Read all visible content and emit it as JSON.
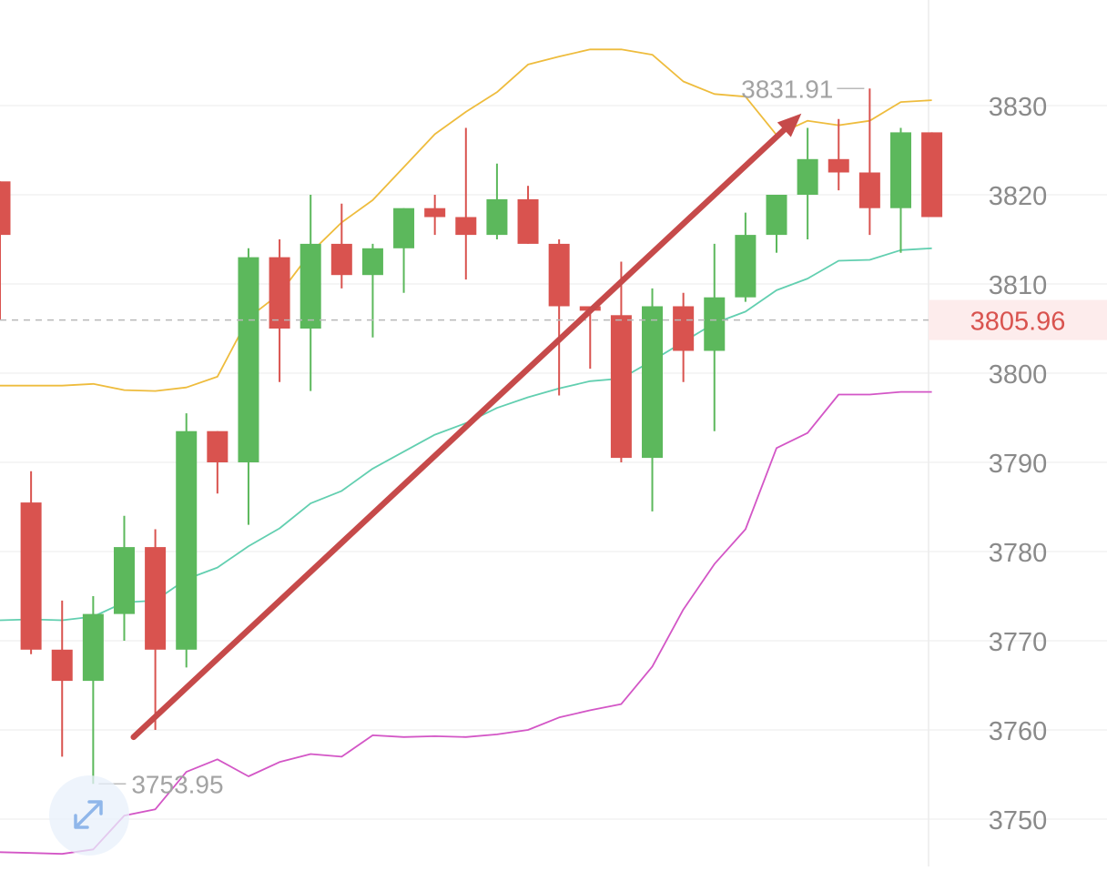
{
  "chart_data": {
    "type": "candlestick",
    "title": "",
    "xlabel": "",
    "ylabel": "",
    "ylim": [
      3746,
      3842
    ],
    "y_ticks": [
      "3750",
      "3760",
      "3770",
      "3780",
      "3790",
      "3800",
      "3810",
      "3820",
      "3830"
    ],
    "grid": true,
    "candles": [
      {
        "o": 3821.5,
        "h": 3821.5,
        "l": 3806,
        "c": 3815.5
      },
      {
        "o": 3785.5,
        "h": 3789,
        "l": 3768.5,
        "c": 3769
      },
      {
        "o": 3769,
        "h": 3774.5,
        "l": 3757,
        "c": 3765.5
      },
      {
        "o": 3765.5,
        "h": 3775,
        "l": 3753.95,
        "c": 3773
      },
      {
        "o": 3773,
        "h": 3784,
        "l": 3770,
        "c": 3780.5
      },
      {
        "o": 3780.5,
        "h": 3782.5,
        "l": 3760,
        "c": 3769
      },
      {
        "o": 3769,
        "h": 3795.5,
        "l": 3767,
        "c": 3793.5
      },
      {
        "o": 3793.5,
        "h": 3793.5,
        "l": 3786.5,
        "c": 3790
      },
      {
        "o": 3790,
        "h": 3814,
        "l": 3783,
        "c": 3813
      },
      {
        "o": 3813,
        "h": 3815,
        "l": 3799,
        "c": 3805
      },
      {
        "o": 3805,
        "h": 3820,
        "l": 3798,
        "c": 3814.5
      },
      {
        "o": 3814.5,
        "h": 3819,
        "l": 3809.5,
        "c": 3811
      },
      {
        "o": 3811,
        "h": 3814.5,
        "l": 3804,
        "c": 3814
      },
      {
        "o": 3814,
        "h": 3818.5,
        "l": 3809,
        "c": 3818.5
      },
      {
        "o": 3818.5,
        "h": 3820,
        "l": 3815.5,
        "c": 3817.5
      },
      {
        "o": 3817.5,
        "h": 3827.5,
        "l": 3810.5,
        "c": 3815.5
      },
      {
        "o": 3815.5,
        "h": 3823.5,
        "l": 3815,
        "c": 3819.5
      },
      {
        "o": 3819.5,
        "h": 3821,
        "l": 3814.5,
        "c": 3814.5
      },
      {
        "o": 3814.5,
        "h": 3815,
        "l": 3797.5,
        "c": 3807.5
      },
      {
        "o": 3807.5,
        "h": 3807.5,
        "l": 3800.5,
        "c": 3807
      },
      {
        "o": 3806.5,
        "h": 3812.5,
        "l": 3790,
        "c": 3790.5
      },
      {
        "o": 3790.5,
        "h": 3809.5,
        "l": 3784.5,
        "c": 3807.5
      },
      {
        "o": 3807.5,
        "h": 3809,
        "l": 3799,
        "c": 3802.5
      },
      {
        "o": 3802.5,
        "h": 3814.5,
        "l": 3793.5,
        "c": 3808.5
      },
      {
        "o": 3808.5,
        "h": 3818,
        "l": 3808,
        "c": 3815.5
      },
      {
        "o": 3815.5,
        "h": 3820,
        "l": 3813.5,
        "c": 3820
      },
      {
        "o": 3820,
        "h": 3827.5,
        "l": 3815,
        "c": 3824
      },
      {
        "o": 3824,
        "h": 3828.5,
        "l": 3820.5,
        "c": 3822.5
      },
      {
        "o": 3822.5,
        "h": 3831.91,
        "l": 3815.5,
        "c": 3818.5
      },
      {
        "o": 3818.5,
        "h": 3827.5,
        "l": 3813.5,
        "c": 3827
      },
      {
        "o": 3827,
        "h": 3827,
        "l": 3817.5,
        "c": 3817.5
      }
    ],
    "series": [
      {
        "values": [
          3798.6,
          3798.6,
          3798.6,
          3798.8,
          3798.1,
          3798.0,
          3798.4,
          3799.6,
          3806.2,
          3808.9,
          3813.5,
          3816.9,
          3819.4,
          3823.1,
          3826.8,
          3829.3,
          3831.5,
          3834.6,
          3835.5,
          3836.3,
          3836.3,
          3835.7,
          3832.7,
          3831.3,
          3831.0,
          3826.7,
          3828.3,
          3827.8,
          3828.3,
          3830.4,
          3830.6
        ]
      },
      {
        "values": [
          3772.3,
          3772.4,
          3772.3,
          3772.7,
          3774.3,
          3774.5,
          3776.9,
          3778.2,
          3780.6,
          3782.6,
          3785.4,
          3786.8,
          3789.3,
          3791.2,
          3793.1,
          3794.4,
          3796.1,
          3797.3,
          3798.3,
          3799.1,
          3799.4,
          3801.4,
          3803.5,
          3805.6,
          3806.9,
          3809.3,
          3810.6,
          3812.6,
          3812.7,
          3813.8,
          3814.0
        ]
      },
      {
        "values": [
          3746.3,
          3746.2,
          3746.1,
          3746.6,
          3750.4,
          3751.1,
          3755.3,
          3756.7,
          3754.8,
          3756.4,
          3757.3,
          3757.0,
          3759.4,
          3759.2,
          3759.3,
          3759.2,
          3759.5,
          3760.0,
          3761.4,
          3762.2,
          3762.9,
          3767.1,
          3773.5,
          3778.6,
          3782.5,
          3791.6,
          3793.3,
          3797.6,
          3797.6,
          3797.9,
          3797.9
        ]
      }
    ],
    "last_price": "3805.96",
    "annotations": {
      "high_label": "3831.91",
      "low_label": "3753.95"
    },
    "colors": {
      "up": "#5cb85c",
      "down": "#d9534f",
      "upper_band": "#eebc3d",
      "middle_band": "#62cfb0",
      "lower_band": "#d356c6",
      "trend_arrow": "#c64a4a",
      "last_price_bg": "#fdecec",
      "last_price_text": "#d9534f",
      "grid": "#efefef",
      "axis_text": "#8a8a8a",
      "annotation_text": "#a3a3a3"
    }
  },
  "controls": {
    "expand_icon": "expand-arrows-icon"
  }
}
